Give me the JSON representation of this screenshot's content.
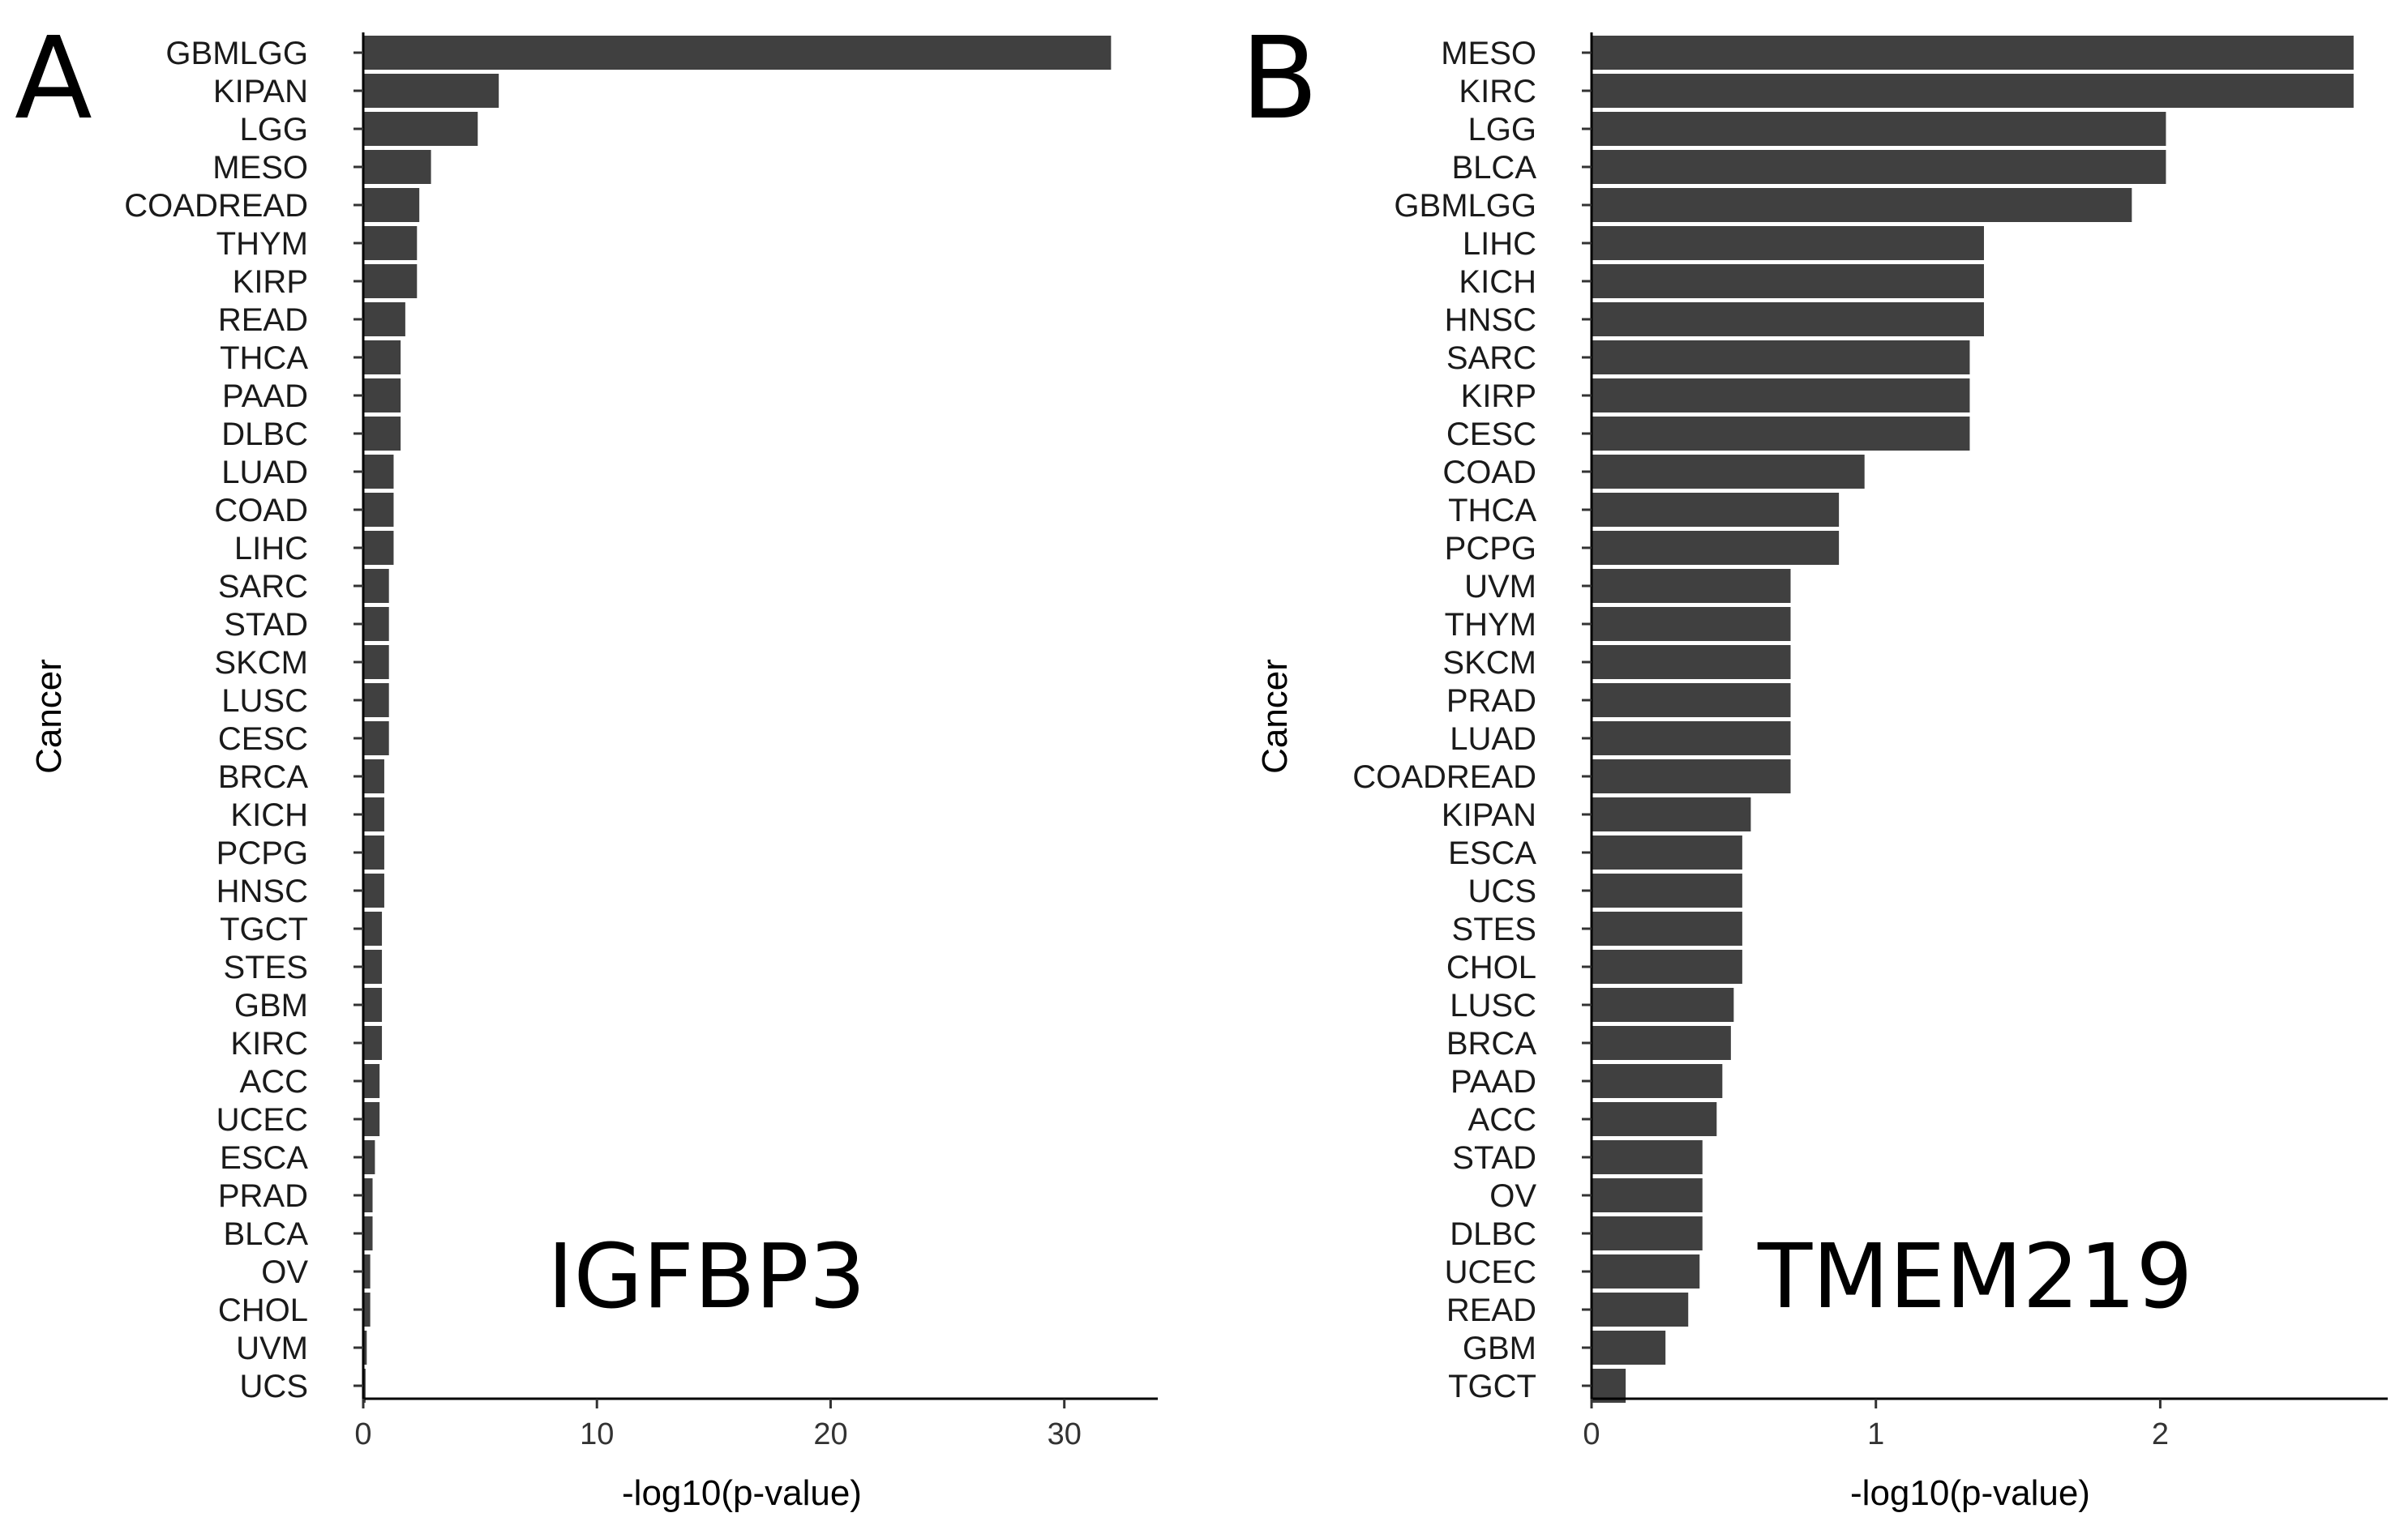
{
  "chart_data": [
    {
      "type": "bar",
      "orientation": "horizontal",
      "panel_label": "A",
      "gene": "IGFBP3",
      "xlabel": "-log10(p-value)",
      "ylabel": "Cancer",
      "xlim": [
        0,
        34
      ],
      "xticks": [
        0,
        10,
        20,
        30
      ],
      "xtick_labels": [
        "0",
        "10",
        "20",
        "30"
      ],
      "categories": [
        "GBMLGG",
        "KIPAN",
        "LGG",
        "MESO",
        "COADREAD",
        "THYM",
        "KIRP",
        "READ",
        "THCA",
        "PAAD",
        "DLBC",
        "LUAD",
        "COAD",
        "LIHC",
        "SARC",
        "STAD",
        "SKCM",
        "LUSC",
        "CESC",
        "BRCA",
        "KICH",
        "PCPG",
        "HNSC",
        "TGCT",
        "STES",
        "GBM",
        "KIRC",
        "ACC",
        "UCEC",
        "ESCA",
        "PRAD",
        "BLCA",
        "OV",
        "CHOL",
        "UVM",
        "UCS"
      ],
      "values": [
        32.0,
        5.8,
        4.9,
        2.9,
        2.4,
        2.3,
        2.3,
        1.8,
        1.6,
        1.6,
        1.6,
        1.3,
        1.3,
        1.3,
        1.1,
        1.1,
        1.1,
        1.1,
        1.1,
        0.9,
        0.9,
        0.9,
        0.9,
        0.8,
        0.8,
        0.8,
        0.8,
        0.7,
        0.7,
        0.5,
        0.4,
        0.4,
        0.3,
        0.3,
        0.15,
        0.1
      ],
      "grid": false
    },
    {
      "type": "bar",
      "orientation": "horizontal",
      "panel_label": "B",
      "gene": "TMEM219",
      "xlabel": "-log10(p-value)",
      "ylabel": "Cancer",
      "xlim": [
        0,
        2.8
      ],
      "xticks": [
        0,
        1,
        2
      ],
      "xtick_labels": [
        "0",
        "1",
        "2"
      ],
      "categories": [
        "MESO",
        "KIRC",
        "LGG",
        "BLCA",
        "GBMLGG",
        "LIHC",
        "KICH",
        "HNSC",
        "SARC",
        "KIRP",
        "CESC",
        "COAD",
        "THCA",
        "PCPG",
        "UVM",
        "THYM",
        "SKCM",
        "PRAD",
        "LUAD",
        "COADREAD",
        "KIPAN",
        "ESCA",
        "UCS",
        "STES",
        "CHOL",
        "LUSC",
        "BRCA",
        "PAAD",
        "ACC",
        "STAD",
        "OV",
        "DLBC",
        "UCEC",
        "READ",
        "GBM",
        "TGCT"
      ],
      "values": [
        2.68,
        2.68,
        2.02,
        2.02,
        1.9,
        1.38,
        1.38,
        1.38,
        1.33,
        1.33,
        1.33,
        0.96,
        0.87,
        0.87,
        0.7,
        0.7,
        0.7,
        0.7,
        0.7,
        0.7,
        0.56,
        0.53,
        0.53,
        0.53,
        0.53,
        0.5,
        0.49,
        0.46,
        0.44,
        0.39,
        0.39,
        0.39,
        0.38,
        0.34,
        0.26,
        0.12
      ],
      "grid": false
    }
  ]
}
